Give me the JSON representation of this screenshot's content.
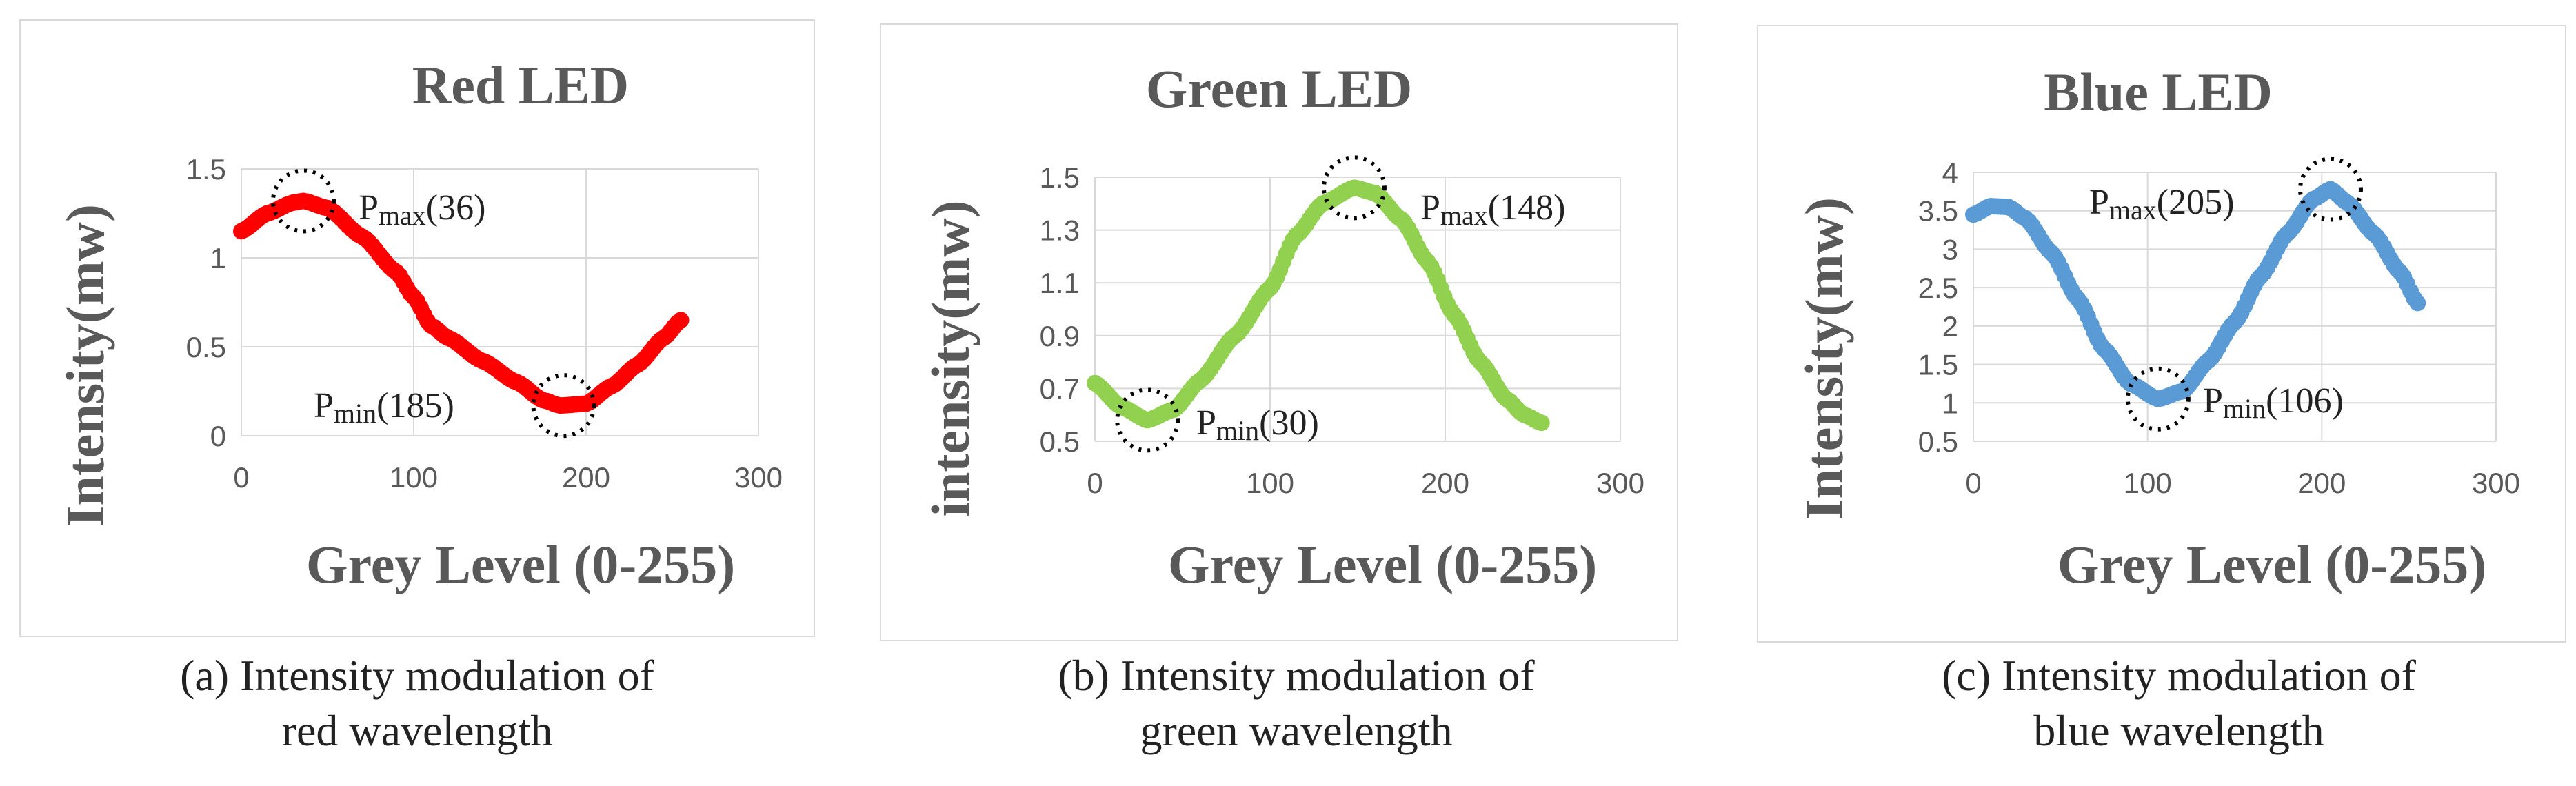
{
  "chart_data": [
    {
      "type": "scatter",
      "title": "Red LED",
      "xlabel": "Grey Level (0-255)",
      "ylabel": "Intensity(mw)",
      "xlim": [
        0,
        300
      ],
      "ylim": [
        0,
        1.5
      ],
      "xticks": [
        "0",
        "100",
        "200",
        "300"
      ],
      "yticks": [
        "0",
        "0.5",
        "1",
        "1.5"
      ],
      "grid": true,
      "color": "#ff0000",
      "series": [
        {
          "name": "Red LED",
          "x": [
            0,
            15,
            30,
            36,
            50,
            70,
            90,
            100,
            110,
            120,
            140,
            160,
            175,
            185,
            200,
            215,
            230,
            245,
            255
          ],
          "y": [
            1.15,
            1.25,
            1.31,
            1.32,
            1.28,
            1.12,
            0.92,
            0.78,
            0.62,
            0.55,
            0.42,
            0.3,
            0.2,
            0.17,
            0.18,
            0.28,
            0.4,
            0.55,
            0.65
          ]
        }
      ],
      "annotations": [
        {
          "label": "P",
          "sub": "max",
          "value": "(36)"
        },
        {
          "label": "P",
          "sub": "min",
          "value": "(185)"
        }
      ],
      "caption_line1": "(a) Intensity modulation of",
      "caption_line2": "red wavelength"
    },
    {
      "type": "scatter",
      "title": "Green LED",
      "xlabel": "Grey Level (0-255)",
      "ylabel": "intensity(mw)",
      "xlim": [
        0,
        300
      ],
      "ylim": [
        0.5,
        1.5
      ],
      "xticks": [
        "0",
        "100",
        "200",
        "300"
      ],
      "yticks": [
        "0.5",
        "0.7",
        "0.9",
        "1.1",
        "1.3",
        "1.5"
      ],
      "grid": true,
      "color": "#92d050",
      "series": [
        {
          "name": "Green LED",
          "x": [
            0,
            15,
            30,
            45,
            60,
            80,
            100,
            115,
            130,
            148,
            160,
            175,
            190,
            205,
            220,
            235,
            245,
            255
          ],
          "y": [
            0.72,
            0.63,
            0.58,
            0.62,
            0.73,
            0.9,
            1.08,
            1.28,
            1.4,
            1.46,
            1.44,
            1.34,
            1.18,
            0.98,
            0.8,
            0.66,
            0.6,
            0.57
          ]
        }
      ],
      "annotations": [
        {
          "label": "P",
          "sub": "max",
          "value": "(148)"
        },
        {
          "label": "P",
          "sub": "min",
          "value": "(30)"
        }
      ],
      "caption_line1": "(b) Intensity modulation of",
      "caption_line2": "green wavelength"
    },
    {
      "type": "scatter",
      "title": "Blue LED",
      "xlabel": "Grey Level (0-255)",
      "ylabel": "Intensity(mw)",
      "xlim": [
        0,
        300
      ],
      "ylim": [
        0.5,
        4
      ],
      "xticks": [
        "0",
        "100",
        "200",
        "300"
      ],
      "yticks": [
        "0.5",
        "1",
        "1.5",
        "2",
        "2.5",
        "3",
        "3.5",
        "4"
      ],
      "grid": true,
      "color": "#5b9bd5",
      "series": [
        {
          "name": "Blue LED",
          "x": [
            0,
            10,
            20,
            30,
            45,
            60,
            75,
            90,
            106,
            120,
            135,
            150,
            165,
            180,
            195,
            205,
            215,
            230,
            245,
            255
          ],
          "y": [
            3.45,
            3.56,
            3.55,
            3.4,
            2.95,
            2.35,
            1.7,
            1.25,
            1.05,
            1.15,
            1.55,
            2.05,
            2.65,
            3.2,
            3.65,
            3.78,
            3.6,
            3.2,
            2.7,
            2.3
          ]
        }
      ],
      "annotations": [
        {
          "label": "P",
          "sub": "max",
          "value": "(205)"
        },
        {
          "label": "P",
          "sub": "min",
          "value": "(106)"
        }
      ],
      "caption_line1": "(c) Intensity modulation of",
      "caption_line2": "blue wavelength"
    }
  ]
}
